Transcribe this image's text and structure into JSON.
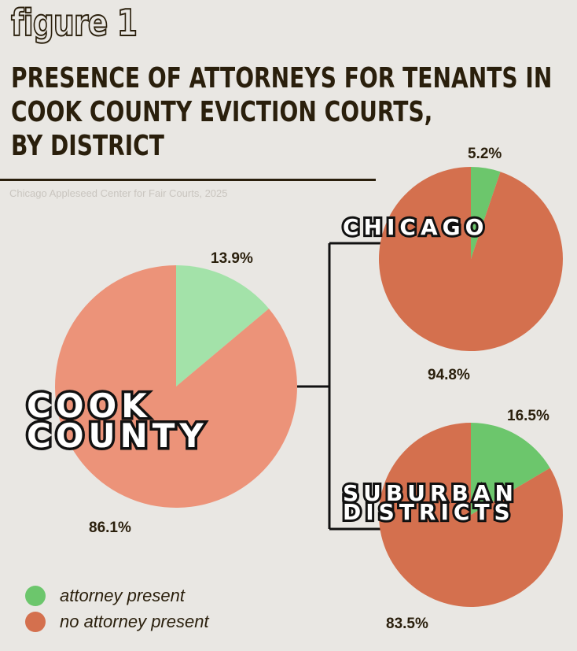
{
  "figure_label": "figure 1",
  "title": "PRESENCE OF ATTORNEYS FOR TENANTS IN\nCOOK COUNTY EVICTION COURTS,\nBY DISTRICT",
  "source": "Chicago Appleseed Center for Fair Courts, 2025",
  "colors": {
    "background": "#E9E7E3",
    "text": "#2A1F0C"
  },
  "legend": [
    {
      "label": "attorney present",
      "color": "#6CC66C"
    },
    {
      "label": "no attorney present",
      "color": "#D4704E"
    }
  ],
  "chart_data": [
    {
      "type": "pie",
      "title": "COOK COUNTY",
      "categories": [
        "attorney present",
        "no attorney present"
      ],
      "values": [
        13.9,
        86.1
      ],
      "labels": [
        "13.9%",
        "86.1%"
      ],
      "colors": [
        "#A3E2A9",
        "#EC9379"
      ]
    },
    {
      "type": "pie",
      "title": "CHICAGO",
      "categories": [
        "attorney present",
        "no attorney present"
      ],
      "values": [
        5.2,
        94.8
      ],
      "labels": [
        "5.2%",
        "94.8%"
      ],
      "colors": [
        "#6CC66C",
        "#D4704E"
      ]
    },
    {
      "type": "pie",
      "title": "SUBURBAN DISTRICTS",
      "categories": [
        "attorney present",
        "no attorney present"
      ],
      "values": [
        16.5,
        83.5
      ],
      "labels": [
        "16.5%",
        "83.5%"
      ],
      "colors": [
        "#6CC66C",
        "#D4704E"
      ]
    }
  ]
}
